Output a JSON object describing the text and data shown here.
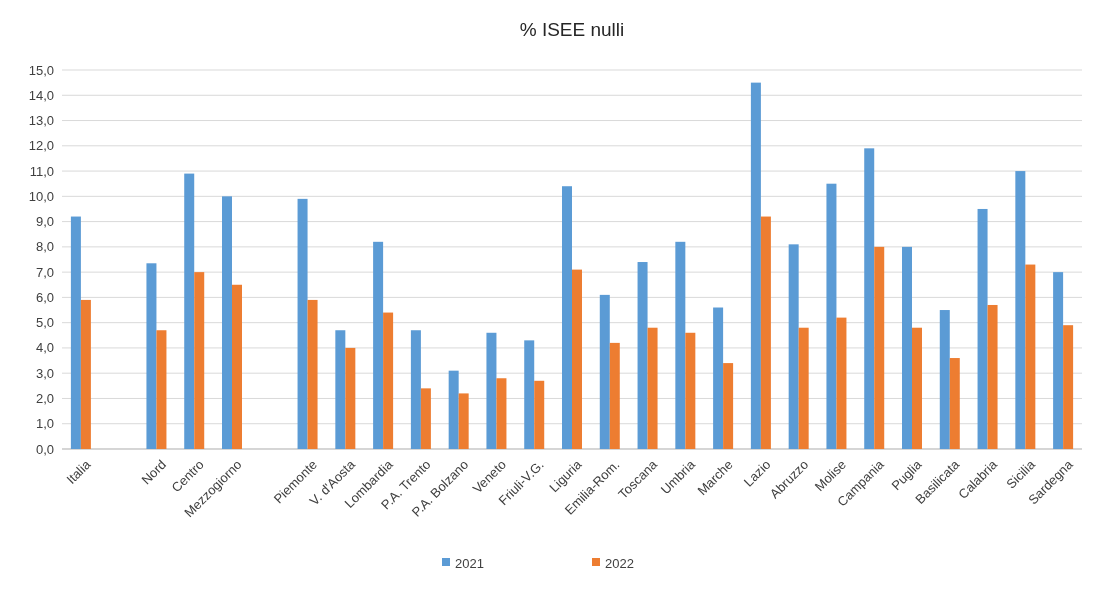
{
  "chart_data": {
    "type": "bar",
    "title": "% ISEE nulli",
    "categories": [
      "Italia",
      null,
      "Nord",
      "Centro",
      "Mezzogiorno",
      null,
      "Piemonte",
      "V. d'Aosta",
      "Lombardia",
      "P.A. Trento",
      "P.A. Bolzano",
      "Veneto",
      "Friuli-V.G.",
      "Liguria",
      "Emilia-Rom.",
      "Toscana",
      "Umbria",
      "Marche",
      "Lazio",
      "Abruzzo",
      "Molise",
      "Campania",
      "Puglia",
      "Basilicata",
      "Calabria",
      "Sicilia",
      "Sardegna"
    ],
    "series": [
      {
        "name": "2021",
        "color": "#5b9bd5",
        "values": [
          9.2,
          null,
          7.35,
          10.9,
          10.0,
          null,
          9.9,
          4.7,
          8.2,
          4.7,
          3.1,
          4.6,
          4.3,
          10.4,
          6.1,
          7.4,
          8.2,
          5.6,
          14.5,
          8.1,
          10.5,
          11.9,
          8.0,
          5.5,
          9.5,
          11.0,
          7.0
        ]
      },
      {
        "name": "2022",
        "color": "#ed7d31",
        "values": [
          5.9,
          null,
          4.7,
          7.0,
          6.5,
          null,
          5.9,
          4.0,
          5.4,
          2.4,
          2.2,
          2.8,
          2.7,
          7.1,
          4.2,
          4.8,
          4.6,
          3.4,
          9.2,
          4.8,
          5.2,
          8.0,
          4.8,
          3.6,
          5.7,
          7.3,
          4.9
        ]
      }
    ],
    "ylim": [
      0,
      15
    ],
    "yticks": [
      {
        "value": 0,
        "label": "0,0"
      },
      {
        "value": 1,
        "label": "1,0"
      },
      {
        "value": 2,
        "label": "2,0"
      },
      {
        "value": 3,
        "label": "3,0"
      },
      {
        "value": 4,
        "label": "4,0"
      },
      {
        "value": 5,
        "label": "5,0"
      },
      {
        "value": 6,
        "label": "6,0"
      },
      {
        "value": 7,
        "label": "7,0"
      },
      {
        "value": 8,
        "label": "8,0"
      },
      {
        "value": 9,
        "label": "9,0"
      },
      {
        "value": 10,
        "label": "10,0"
      },
      {
        "value": 11,
        "label": "11,0"
      },
      {
        "value": 12,
        "label": "12,0"
      },
      {
        "value": 13,
        "label": "13,0"
      },
      {
        "value": 14,
        "label": "14,0"
      },
      {
        "value": 15,
        "label": "15,0"
      }
    ],
    "grid": "y",
    "legend": "bottom"
  }
}
